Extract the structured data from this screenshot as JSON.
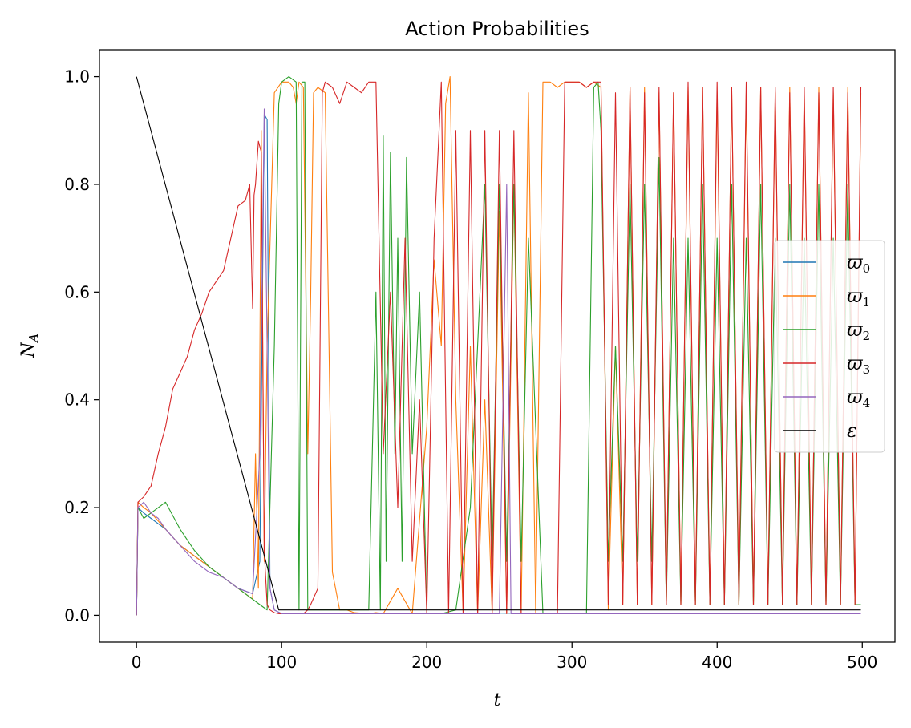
{
  "chart_data": {
    "type": "line",
    "title": "Action Probabilities",
    "xlabel": "t",
    "ylabel_base": "N",
    "ylabel_sub": "A",
    "xlim": [
      -25.5,
      522.5
    ],
    "ylim": [
      -0.05,
      1.05
    ],
    "xticks": [
      0,
      100,
      200,
      300,
      400,
      500
    ],
    "xtick_labels": [
      "0",
      "100",
      "200",
      "300",
      "400",
      "500"
    ],
    "yticks": [
      0.0,
      0.2,
      0.4,
      0.6,
      0.8,
      1.0
    ],
    "ytick_labels": [
      "0.0",
      "0.2",
      "0.4",
      "0.6",
      "0.8",
      "1.0"
    ],
    "grid": false,
    "legend_position": "center-right",
    "series": [
      {
        "name": "ϖ",
        "sub": "0",
        "color": "#1f77b4",
        "x": [
          0,
          1,
          5,
          10,
          15,
          20,
          30,
          40,
          50,
          60,
          70,
          80,
          85,
          88,
          90,
          92,
          95,
          100,
          150,
          200,
          250,
          300,
          350,
          400,
          450,
          499
        ],
        "y": [
          0.0,
          0.2,
          0.19,
          0.18,
          0.17,
          0.16,
          0.13,
          0.11,
          0.09,
          0.07,
          0.05,
          0.04,
          0.1,
          0.93,
          0.92,
          0.05,
          0.01,
          0.003,
          0.003,
          0.003,
          0.004,
          0.003,
          0.003,
          0.003,
          0.003,
          0.003
        ]
      },
      {
        "name": "ϖ",
        "sub": "1",
        "color": "#ff7f0e",
        "x": [
          0,
          1,
          5,
          10,
          20,
          30,
          40,
          50,
          60,
          70,
          80,
          82,
          84,
          86,
          88,
          90,
          95,
          100,
          105,
          108,
          110,
          112,
          115,
          118,
          120,
          122,
          125,
          130,
          135,
          140,
          145,
          150,
          160,
          165,
          170,
          180,
          190,
          200,
          205,
          210,
          213,
          216,
          220,
          225,
          230,
          235,
          240,
          245,
          250,
          255,
          260,
          265,
          270,
          275,
          280,
          285,
          290,
          295,
          300,
          305,
          310,
          315,
          320,
          325,
          330,
          335,
          340,
          345,
          350,
          355,
          360,
          365,
          370,
          375,
          380,
          385,
          390,
          395,
          400,
          405,
          410,
          415,
          420,
          425,
          430,
          435,
          440,
          445,
          450,
          455,
          460,
          465,
          470,
          475,
          480,
          485,
          490,
          495,
          499
        ],
        "y": [
          0.0,
          0.21,
          0.2,
          0.19,
          0.16,
          0.13,
          0.11,
          0.09,
          0.07,
          0.05,
          0.03,
          0.3,
          0.05,
          0.9,
          0.1,
          0.5,
          0.97,
          0.99,
          0.99,
          0.98,
          0.95,
          0.99,
          0.98,
          0.3,
          0.59,
          0.97,
          0.98,
          0.97,
          0.08,
          0.01,
          0.01,
          0.005,
          0.003,
          0.005,
          0.003,
          0.05,
          0.003,
          0.35,
          0.66,
          0.5,
          0.95,
          1.0,
          0.4,
          0.003,
          0.5,
          0.003,
          0.4,
          0.003,
          0.75,
          0.003,
          0.8,
          0.003,
          0.97,
          0.003,
          0.99,
          0.99,
          0.98,
          0.99,
          0.99,
          0.99,
          0.98,
          0.99,
          0.98,
          0.01,
          0.5,
          0.02,
          0.98,
          0.02,
          0.98,
          0.02,
          0.97,
          0.02,
          0.97,
          0.02,
          0.98,
          0.02,
          0.98,
          0.02,
          0.97,
          0.02,
          0.98,
          0.02,
          0.97,
          0.02,
          0.98,
          0.02,
          0.97,
          0.02,
          0.98,
          0.02,
          0.97,
          0.02,
          0.98,
          0.02,
          0.97,
          0.02,
          0.98,
          0.02,
          0.97
        ]
      },
      {
        "name": "ϖ",
        "sub": "2",
        "color": "#2ca02c",
        "x": [
          0,
          1,
          5,
          10,
          20,
          30,
          40,
          50,
          60,
          70,
          80,
          85,
          90,
          95,
          98,
          100,
          105,
          110,
          112,
          114,
          116,
          118,
          120,
          125,
          130,
          140,
          150,
          160,
          165,
          168,
          170,
          172,
          175,
          178,
          180,
          183,
          186,
          190,
          195,
          200,
          205,
          210,
          220,
          230,
          240,
          245,
          250,
          255,
          260,
          265,
          270,
          280,
          290,
          300,
          310,
          315,
          318,
          320,
          325,
          330,
          335,
          340,
          345,
          350,
          355,
          360,
          365,
          370,
          375,
          380,
          385,
          390,
          395,
          400,
          405,
          410,
          415,
          420,
          425,
          430,
          435,
          440,
          445,
          450,
          455,
          460,
          465,
          470,
          475,
          480,
          485,
          490,
          495,
          499
        ],
        "y": [
          0.0,
          0.2,
          0.18,
          0.19,
          0.21,
          0.16,
          0.12,
          0.09,
          0.07,
          0.05,
          0.03,
          0.02,
          0.01,
          0.5,
          0.95,
          0.99,
          1.0,
          0.99,
          0.01,
          0.99,
          0.99,
          0.01,
          0.01,
          0.01,
          0.01,
          0.01,
          0.01,
          0.01,
          0.6,
          0.01,
          0.89,
          0.1,
          0.86,
          0.3,
          0.7,
          0.1,
          0.85,
          0.3,
          0.6,
          0.003,
          0.003,
          0.003,
          0.01,
          0.2,
          0.8,
          0.1,
          0.8,
          0.1,
          0.8,
          0.1,
          0.7,
          0.003,
          0.003,
          0.003,
          0.003,
          0.98,
          0.99,
          0.9,
          0.1,
          0.5,
          0.1,
          0.8,
          0.1,
          0.8,
          0.1,
          0.85,
          0.02,
          0.7,
          0.02,
          0.7,
          0.02,
          0.8,
          0.02,
          0.7,
          0.02,
          0.8,
          0.02,
          0.7,
          0.02,
          0.8,
          0.02,
          0.7,
          0.02,
          0.8,
          0.02,
          0.7,
          0.02,
          0.8,
          0.02,
          0.7,
          0.02,
          0.8,
          0.02,
          0.02
        ]
      },
      {
        "name": "ϖ",
        "sub": "3",
        "color": "#d62728",
        "x": [
          0,
          1,
          5,
          10,
          15,
          20,
          25,
          30,
          35,
          40,
          45,
          50,
          55,
          60,
          65,
          70,
          75,
          78,
          80,
          81,
          82,
          84,
          86,
          88,
          90,
          92,
          95,
          98,
          100,
          105,
          110,
          115,
          118,
          120,
          125,
          128,
          130,
          135,
          140,
          145,
          150,
          155,
          160,
          165,
          170,
          175,
          180,
          185,
          190,
          195,
          200,
          205,
          210,
          215,
          220,
          225,
          230,
          235,
          240,
          245,
          250,
          255,
          260,
          265,
          270,
          275,
          280,
          285,
          290,
          295,
          300,
          305,
          310,
          315,
          320,
          325,
          330,
          335,
          340,
          345,
          350,
          355,
          360,
          365,
          370,
          375,
          380,
          385,
          390,
          395,
          400,
          405,
          410,
          415,
          420,
          425,
          430,
          435,
          440,
          445,
          450,
          455,
          460,
          465,
          470,
          475,
          480,
          485,
          490,
          495,
          499
        ],
        "y": [
          0.0,
          0.21,
          0.22,
          0.24,
          0.3,
          0.35,
          0.42,
          0.45,
          0.48,
          0.53,
          0.56,
          0.6,
          0.62,
          0.64,
          0.7,
          0.76,
          0.77,
          0.8,
          0.57,
          0.78,
          0.8,
          0.88,
          0.86,
          0.12,
          0.02,
          0.01,
          0.005,
          0.003,
          0.003,
          0.003,
          0.003,
          0.003,
          0.01,
          0.02,
          0.05,
          0.97,
          0.99,
          0.98,
          0.95,
          0.99,
          0.98,
          0.97,
          0.99,
          0.99,
          0.3,
          0.6,
          0.2,
          0.7,
          0.1,
          0.4,
          0.003,
          0.7,
          0.99,
          0.003,
          0.9,
          0.003,
          0.9,
          0.003,
          0.9,
          0.003,
          0.9,
          0.003,
          0.9,
          0.003,
          0.003,
          0.003,
          0.003,
          0.003,
          0.003,
          0.99,
          0.99,
          0.99,
          0.98,
          0.99,
          0.99,
          0.02,
          0.97,
          0.02,
          0.98,
          0.02,
          0.97,
          0.02,
          0.98,
          0.02,
          0.97,
          0.02,
          0.99,
          0.02,
          0.98,
          0.02,
          0.99,
          0.02,
          0.98,
          0.02,
          0.99,
          0.02,
          0.98,
          0.02,
          0.98,
          0.02,
          0.97,
          0.02,
          0.98,
          0.02,
          0.97,
          0.02,
          0.98,
          0.02,
          0.97,
          0.02,
          0.98
        ]
      },
      {
        "name": "ϖ",
        "sub": "4",
        "color": "#9467bd",
        "x": [
          0,
          1,
          5,
          10,
          15,
          20,
          30,
          40,
          50,
          60,
          70,
          80,
          85,
          88,
          90,
          92,
          95,
          100,
          150,
          200,
          250,
          255,
          258,
          260,
          300,
          350,
          400,
          450,
          499
        ],
        "y": [
          0.0,
          0.2,
          0.21,
          0.19,
          0.18,
          0.16,
          0.13,
          0.1,
          0.08,
          0.07,
          0.05,
          0.04,
          0.3,
          0.94,
          0.5,
          0.05,
          0.01,
          0.003,
          0.003,
          0.003,
          0.003,
          0.8,
          0.003,
          0.003,
          0.003,
          0.003,
          0.003,
          0.003,
          0.003
        ]
      },
      {
        "name": "ε",
        "sub": "",
        "color": "#000000",
        "x": [
          0,
          98,
          499
        ],
        "y": [
          1.0,
          0.01,
          0.01
        ]
      }
    ]
  }
}
